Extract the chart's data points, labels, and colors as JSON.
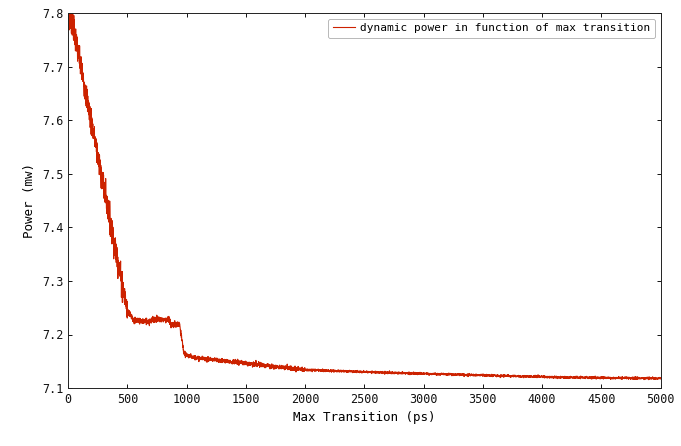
{
  "xlabel": "Max Transition (ps)",
  "ylabel": "Power (mw)",
  "legend_label": "dynamic power in function of max transition",
  "line_color": "#cc2200",
  "xlim": [
    0,
    5000
  ],
  "ylim": [
    7.1,
    7.8
  ],
  "yticks": [
    7.1,
    7.2,
    7.3,
    7.4,
    7.5,
    7.6,
    7.7,
    7.8
  ],
  "xticks": [
    0,
    500,
    1000,
    1500,
    2000,
    2500,
    3000,
    3500,
    4000,
    4500,
    5000
  ],
  "bg_color": "#ffffff",
  "figsize": [
    6.81,
    4.46
  ],
  "dpi": 100
}
